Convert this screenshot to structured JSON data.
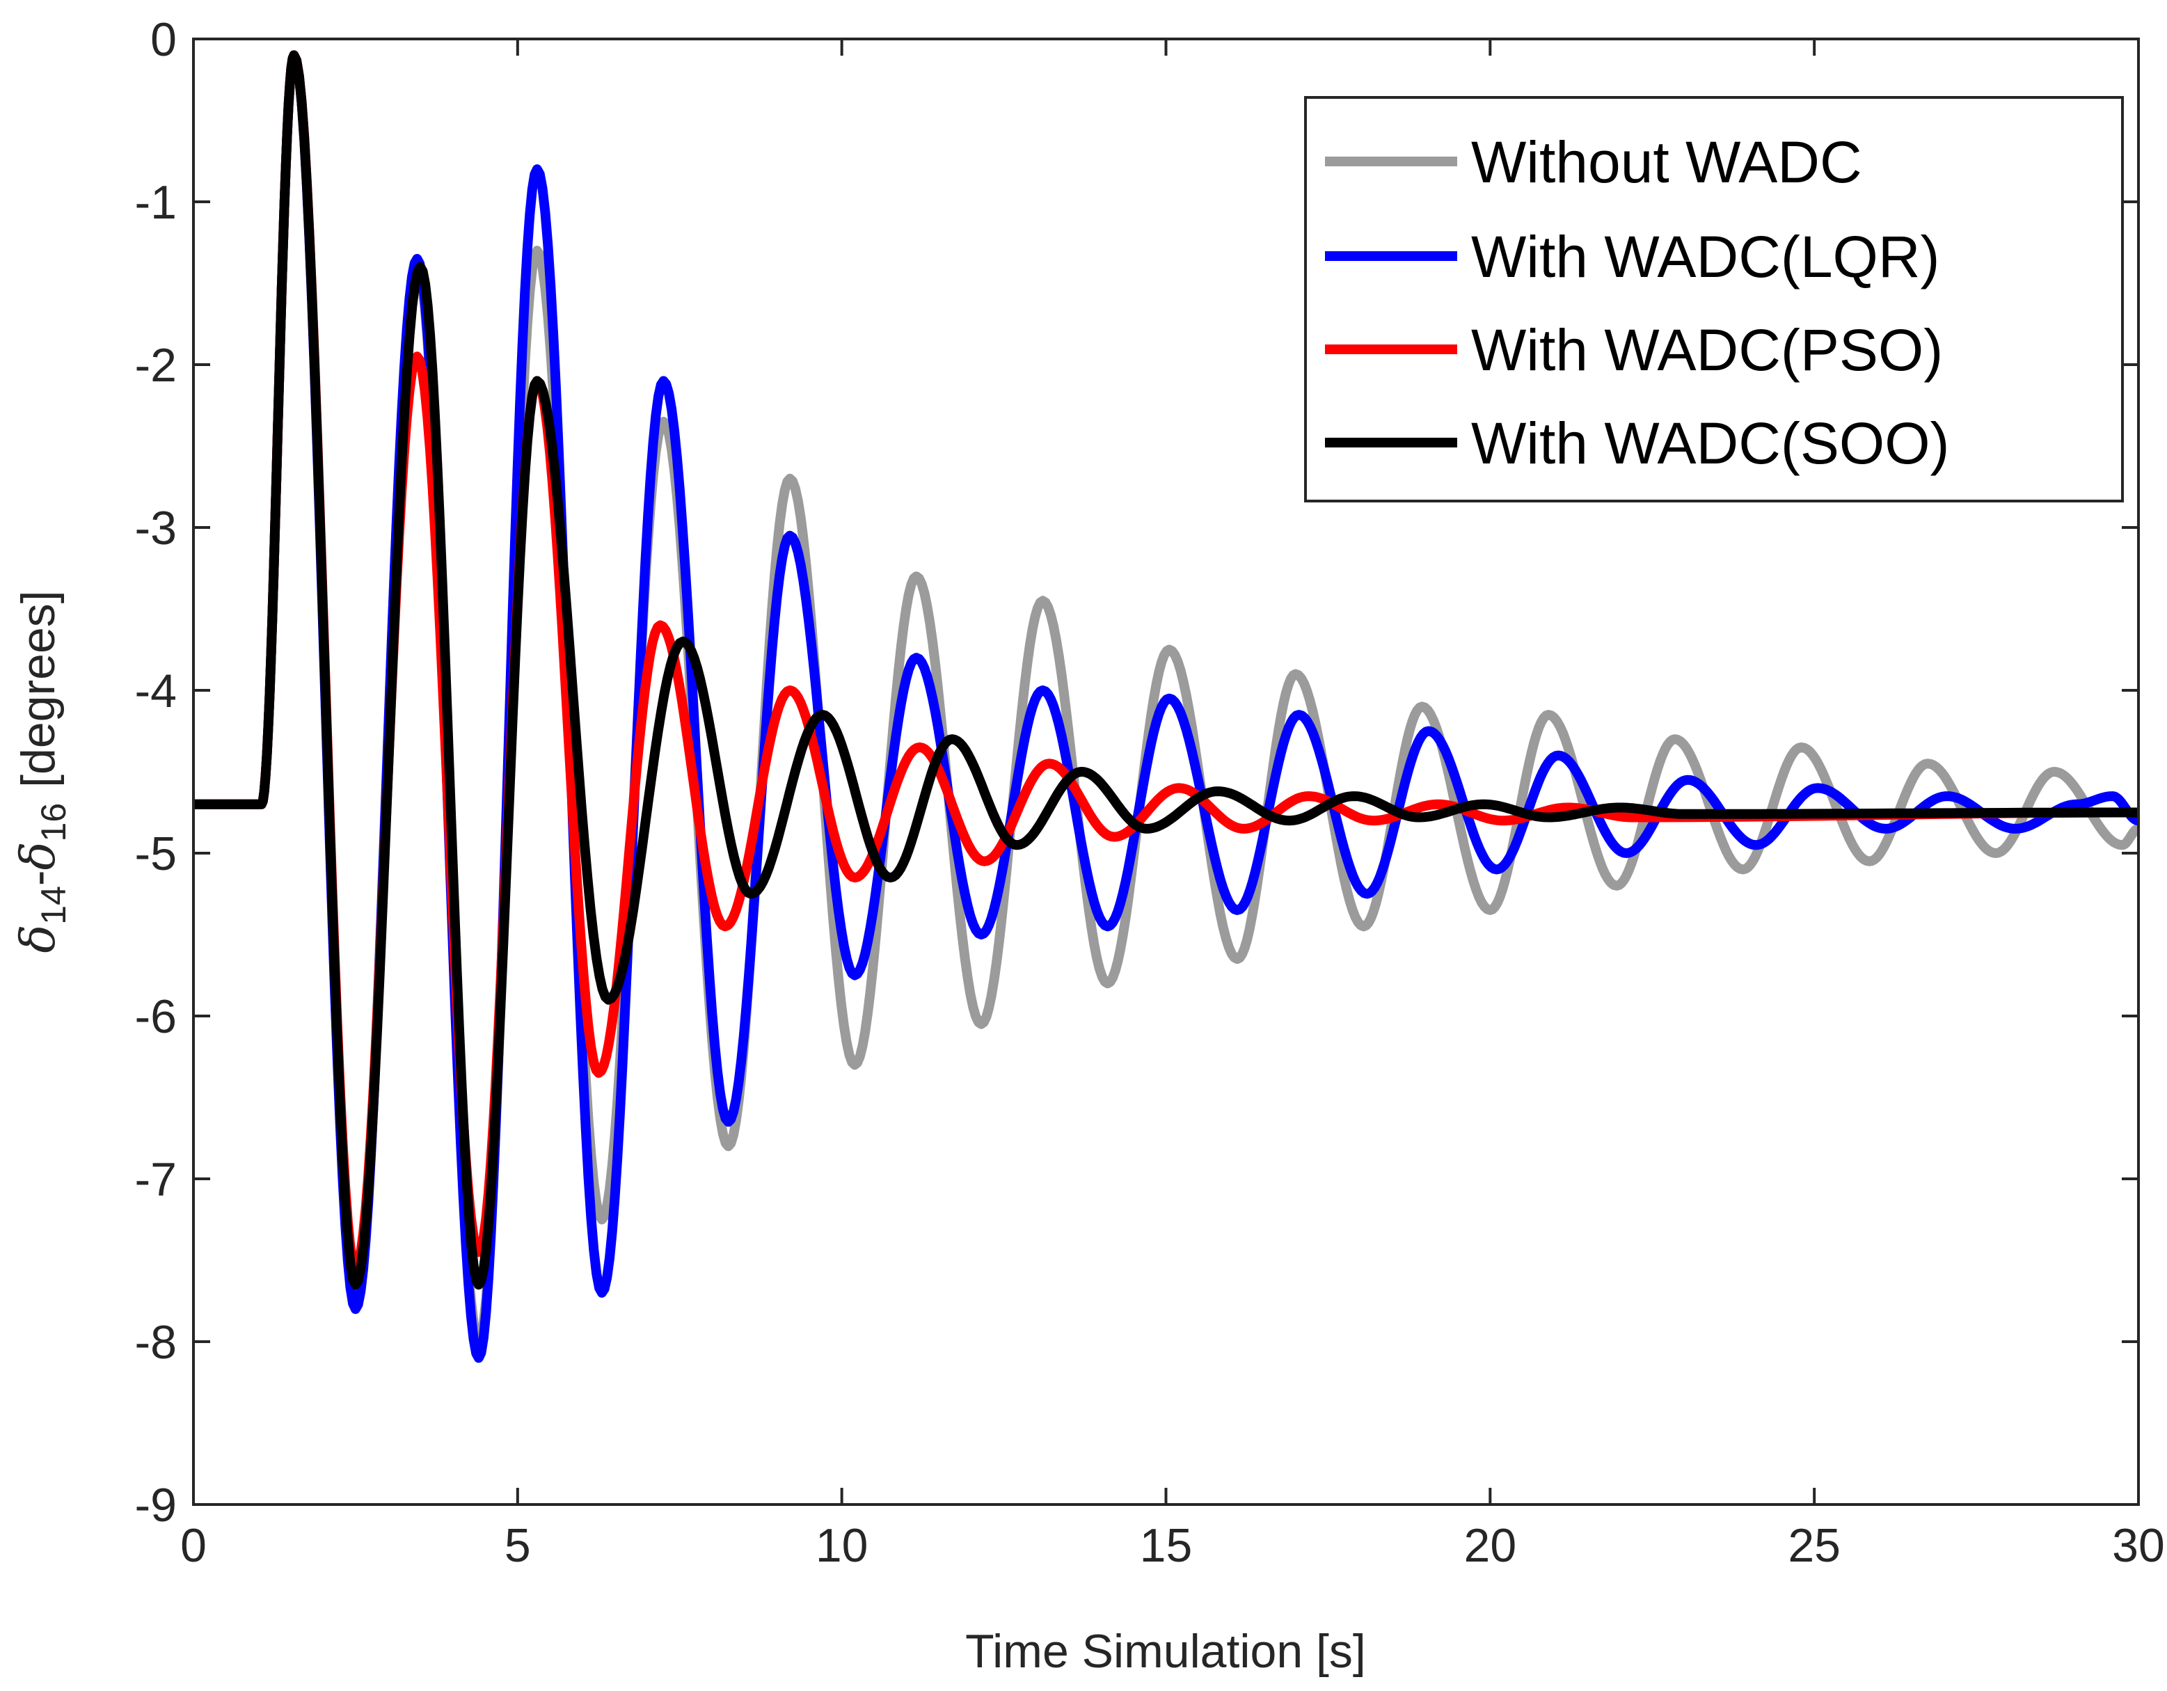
{
  "chart_data": {
    "type": "line",
    "title": "",
    "xlabel": "Time Simulation [s]",
    "ylabel": {
      "text": "δ14-δ16 [degrees]",
      "delta": "δ",
      "sub1": "14",
      "dash": "-",
      "sub2": "16",
      "unit": "[degrees]"
    },
    "xlim": [
      0,
      30
    ],
    "ylim": [
      -9,
      0
    ],
    "xticks": [
      0,
      5,
      10,
      15,
      20,
      25,
      30
    ],
    "xtick_labels": [
      "0",
      "5",
      "10",
      "15",
      "20",
      "25",
      "30"
    ],
    "yticks": [
      0,
      -1,
      -2,
      -3,
      -4,
      -5,
      -6,
      -7,
      -8,
      -9
    ],
    "ytick_labels": [
      "0",
      "-1",
      "-2",
      "-3",
      "-4",
      "-5",
      "-6",
      "-7",
      "-8",
      "-9"
    ],
    "grid": false,
    "legend_position": "top-right",
    "disturbance": {
      "t_start": 1.05,
      "steady_initial": -4.7,
      "steady_final": -4.75
    },
    "series": [
      {
        "name": "Without WADC",
        "color": "#9b9b9b",
        "extrema": [
          [
            1.55,
            -0.1
          ],
          [
            2.5,
            -7.7
          ],
          [
            3.45,
            -1.4
          ],
          [
            4.4,
            -8.0
          ],
          [
            5.3,
            -1.3
          ],
          [
            6.3,
            -7.25
          ],
          [
            7.25,
            -2.35
          ],
          [
            8.25,
            -6.8
          ],
          [
            9.2,
            -2.7
          ],
          [
            10.2,
            -6.3
          ],
          [
            11.15,
            -3.3
          ],
          [
            12.15,
            -6.05
          ],
          [
            13.1,
            -3.45
          ],
          [
            14.1,
            -5.8
          ],
          [
            15.05,
            -3.75
          ],
          [
            16.1,
            -5.65
          ],
          [
            17.0,
            -3.9
          ],
          [
            18.05,
            -5.45
          ],
          [
            18.95,
            -4.1
          ],
          [
            20.0,
            -5.35
          ],
          [
            20.9,
            -4.15
          ],
          [
            21.95,
            -5.2
          ],
          [
            22.85,
            -4.3
          ],
          [
            23.9,
            -5.1
          ],
          [
            24.8,
            -4.35
          ],
          [
            25.85,
            -5.05
          ],
          [
            26.75,
            -4.45
          ],
          [
            27.8,
            -5.0
          ],
          [
            28.7,
            -4.5
          ],
          [
            29.75,
            -4.95
          ],
          [
            30.0,
            -4.85
          ]
        ]
      },
      {
        "name": "With WADC(LQR)",
        "color": "#0000ff",
        "extrema": [
          [
            1.55,
            -0.1
          ],
          [
            2.5,
            -7.8
          ],
          [
            3.45,
            -1.35
          ],
          [
            4.4,
            -8.1
          ],
          [
            5.3,
            -0.8
          ],
          [
            6.3,
            -7.7
          ],
          [
            7.25,
            -2.1
          ],
          [
            8.25,
            -6.65
          ],
          [
            9.2,
            -3.05
          ],
          [
            10.2,
            -5.75
          ],
          [
            11.15,
            -3.8
          ],
          [
            12.15,
            -5.5
          ],
          [
            13.1,
            -4.0
          ],
          [
            14.1,
            -5.45
          ],
          [
            15.05,
            -4.05
          ],
          [
            16.1,
            -5.35
          ],
          [
            17.05,
            -4.15
          ],
          [
            18.1,
            -5.25
          ],
          [
            19.05,
            -4.25
          ],
          [
            20.1,
            -5.1
          ],
          [
            21.05,
            -4.4
          ],
          [
            22.1,
            -5.0
          ],
          [
            23.05,
            -4.55
          ],
          [
            24.1,
            -4.95
          ],
          [
            25.05,
            -4.6
          ],
          [
            26.1,
            -4.85
          ],
          [
            27.05,
            -4.65
          ],
          [
            28.1,
            -4.85
          ],
          [
            29.05,
            -4.7
          ],
          [
            29.6,
            -4.65
          ],
          [
            30.0,
            -4.8
          ]
        ]
      },
      {
        "name": "With WADC(PSO)",
        "color": "#ff0000",
        "extrema": [
          [
            1.55,
            -0.1
          ],
          [
            2.5,
            -7.55
          ],
          [
            3.45,
            -1.95
          ],
          [
            4.4,
            -7.45
          ],
          [
            5.3,
            -2.1
          ],
          [
            6.25,
            -6.35
          ],
          [
            7.2,
            -3.6
          ],
          [
            8.2,
            -5.45
          ],
          [
            9.2,
            -4.0
          ],
          [
            10.2,
            -5.15
          ],
          [
            11.2,
            -4.35
          ],
          [
            12.2,
            -5.05
          ],
          [
            13.2,
            -4.45
          ],
          [
            14.2,
            -4.9
          ],
          [
            15.2,
            -4.6
          ],
          [
            16.2,
            -4.85
          ],
          [
            17.2,
            -4.65
          ],
          [
            18.2,
            -4.8
          ],
          [
            19.2,
            -4.7
          ],
          [
            20.2,
            -4.8
          ],
          [
            21.2,
            -4.72
          ],
          [
            22.2,
            -4.78
          ],
          [
            30.0,
            -4.75
          ]
        ]
      },
      {
        "name": "With WADC(SOO)",
        "color": "#000000",
        "extrema": [
          [
            1.55,
            -0.1
          ],
          [
            2.5,
            -7.65
          ],
          [
            3.5,
            -1.4
          ],
          [
            4.4,
            -7.65
          ],
          [
            5.3,
            -2.1
          ],
          [
            6.4,
            -5.9
          ],
          [
            7.55,
            -3.7
          ],
          [
            8.6,
            -5.25
          ],
          [
            9.7,
            -4.15
          ],
          [
            10.75,
            -5.15
          ],
          [
            11.7,
            -4.3
          ],
          [
            12.7,
            -4.95
          ],
          [
            13.7,
            -4.5
          ],
          [
            14.7,
            -4.85
          ],
          [
            15.8,
            -4.62
          ],
          [
            16.9,
            -4.8
          ],
          [
            17.9,
            -4.65
          ],
          [
            18.9,
            -4.78
          ],
          [
            19.9,
            -4.7
          ],
          [
            20.9,
            -4.78
          ],
          [
            22.0,
            -4.72
          ],
          [
            23.0,
            -4.76
          ],
          [
            30.0,
            -4.75
          ]
        ]
      }
    ]
  }
}
